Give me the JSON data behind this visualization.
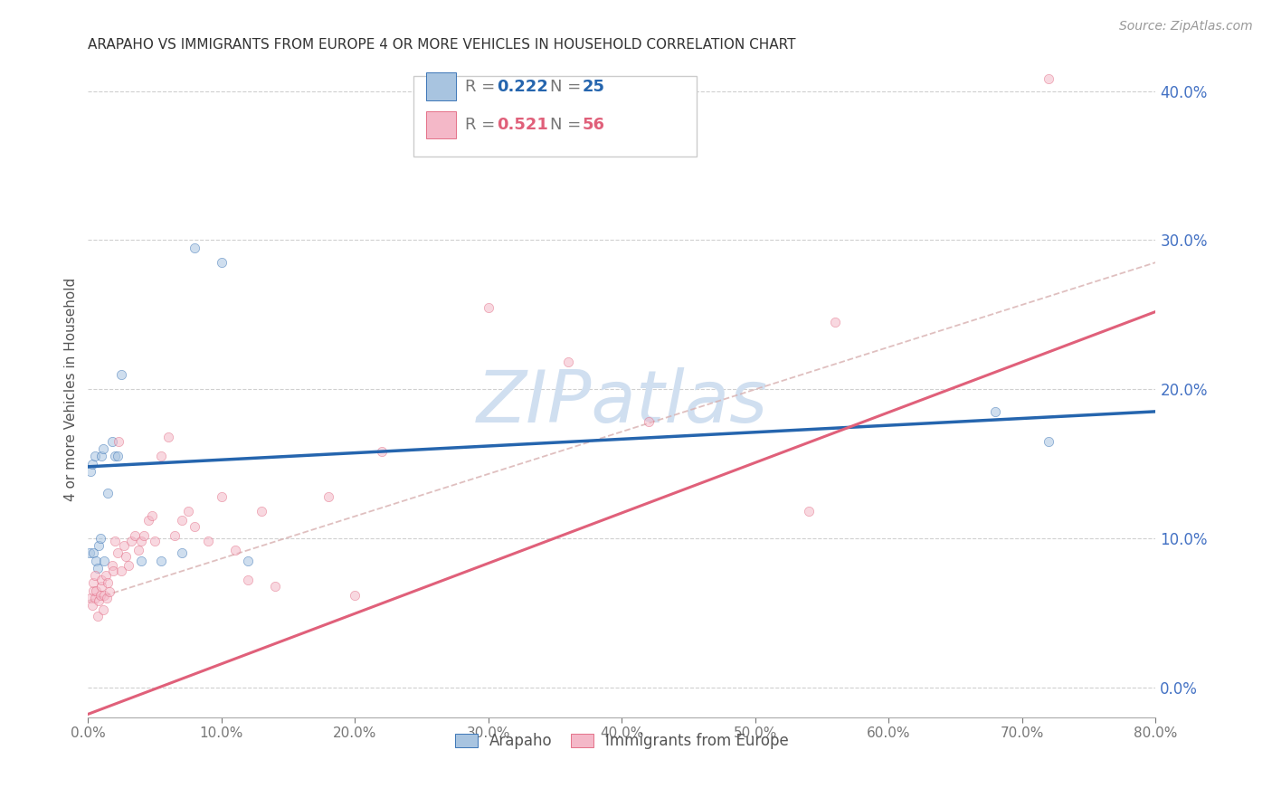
{
  "title": "ARAPAHO VS IMMIGRANTS FROM EUROPE 4 OR MORE VEHICLES IN HOUSEHOLD CORRELATION CHART",
  "source": "Source: ZipAtlas.com",
  "ylabel": "4 or more Vehicles in Household",
  "xlim": [
    0.0,
    0.8
  ],
  "ylim": [
    -0.02,
    0.42
  ],
  "x_ticks": [
    0.0,
    0.1,
    0.2,
    0.3,
    0.4,
    0.5,
    0.6,
    0.7,
    0.8
  ],
  "y_ticks": [
    0.0,
    0.1,
    0.2,
    0.3,
    0.4
  ],
  "arapaho_R": 0.222,
  "arapaho_N": 25,
  "immigrants_R": 0.521,
  "immigrants_N": 56,
  "arapaho_color": "#a8c4e0",
  "arapaho_line_color": "#2565ae",
  "immigrants_color": "#f4b8c8",
  "immigrants_line_color": "#e0607a",
  "dashed_line_color": "#d8b0b0",
  "background_color": "#ffffff",
  "watermark_color": "#d0dff0",
  "legend_label_arapaho": "Arapaho",
  "legend_label_immigrants": "Immigrants from Europe",
  "arapaho_x": [
    0.001,
    0.002,
    0.003,
    0.004,
    0.005,
    0.006,
    0.007,
    0.008,
    0.009,
    0.01,
    0.011,
    0.012,
    0.015,
    0.018,
    0.02,
    0.022,
    0.025,
    0.04,
    0.055,
    0.07,
    0.08,
    0.1,
    0.12,
    0.68,
    0.72
  ],
  "arapaho_y": [
    0.09,
    0.145,
    0.15,
    0.09,
    0.155,
    0.085,
    0.08,
    0.095,
    0.1,
    0.155,
    0.16,
    0.085,
    0.13,
    0.165,
    0.155,
    0.155,
    0.21,
    0.085,
    0.085,
    0.09,
    0.295,
    0.285,
    0.085,
    0.185,
    0.165
  ],
  "immigrants_x": [
    0.002,
    0.003,
    0.004,
    0.004,
    0.005,
    0.005,
    0.006,
    0.007,
    0.008,
    0.009,
    0.01,
    0.01,
    0.011,
    0.012,
    0.013,
    0.014,
    0.015,
    0.016,
    0.018,
    0.019,
    0.02,
    0.022,
    0.023,
    0.025,
    0.027,
    0.028,
    0.03,
    0.032,
    0.035,
    0.038,
    0.04,
    0.042,
    0.045,
    0.048,
    0.05,
    0.055,
    0.06,
    0.065,
    0.07,
    0.075,
    0.08,
    0.09,
    0.1,
    0.11,
    0.12,
    0.13,
    0.14,
    0.18,
    0.2,
    0.22,
    0.3,
    0.36,
    0.42,
    0.54,
    0.56,
    0.72
  ],
  "immigrants_y": [
    0.06,
    0.055,
    0.065,
    0.07,
    0.06,
    0.075,
    0.065,
    0.048,
    0.058,
    0.062,
    0.068,
    0.072,
    0.052,
    0.062,
    0.075,
    0.06,
    0.07,
    0.064,
    0.082,
    0.078,
    0.098,
    0.09,
    0.165,
    0.078,
    0.095,
    0.088,
    0.082,
    0.098,
    0.102,
    0.092,
    0.098,
    0.102,
    0.112,
    0.115,
    0.098,
    0.155,
    0.168,
    0.102,
    0.112,
    0.118,
    0.108,
    0.098,
    0.128,
    0.092,
    0.072,
    0.118,
    0.068,
    0.128,
    0.062,
    0.158,
    0.255,
    0.218,
    0.178,
    0.118,
    0.245,
    0.408
  ],
  "arapaho_line_x0": 0.0,
  "arapaho_line_y0": 0.148,
  "arapaho_line_x1": 0.8,
  "arapaho_line_y1": 0.185,
  "immigrants_line_x0": 0.0,
  "immigrants_line_y0": -0.018,
  "immigrants_line_x1": 0.8,
  "immigrants_line_y1": 0.252,
  "dash_line_x0": 0.0,
  "dash_line_y0": 0.058,
  "dash_line_x1": 0.8,
  "dash_line_y1": 0.285,
  "title_fontsize": 11,
  "axis_label_fontsize": 11,
  "tick_fontsize": 11,
  "source_fontsize": 10,
  "marker_size": 55,
  "marker_alpha": 0.55,
  "line_width": 2.2
}
